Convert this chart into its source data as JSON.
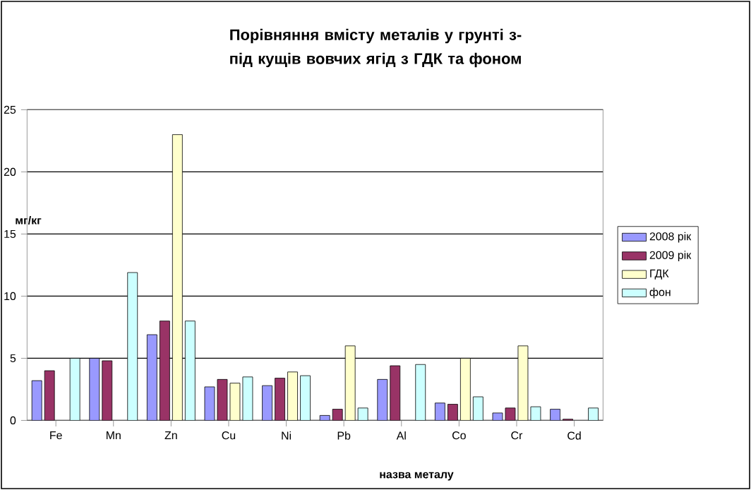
{
  "chart_data": {
    "type": "bar",
    "title": "Порівняння вмісту металів у грунті з-під кущів вовчих ягід з ГДК та фоном",
    "xlabel": "назва металу",
    "ylabel": "мг/кг",
    "categories": [
      "Fe",
      "Mn",
      "Zn",
      "Cu",
      "Ni",
      "Pb",
      "Al",
      "Co",
      "Cr",
      "Cd"
    ],
    "series": [
      {
        "name": "2008 рік",
        "color": "#9999ff",
        "values": [
          3.2,
          5.0,
          6.9,
          2.7,
          2.8,
          0.4,
          3.3,
          1.4,
          0.6,
          0.9
        ]
      },
      {
        "name": "2009 рік",
        "color": "#993366",
        "values": [
          4.0,
          4.8,
          8.0,
          3.3,
          3.4,
          0.9,
          4.4,
          1.3,
          1.0,
          0.1
        ]
      },
      {
        "name": "ГДК",
        "color": "#ffffcc",
        "values": [
          null,
          null,
          23.0,
          3.0,
          3.9,
          6.0,
          null,
          5.0,
          6.0,
          null
        ]
      },
      {
        "name": "фон",
        "color": "#ccffff",
        "values": [
          5.0,
          11.9,
          8.0,
          3.5,
          3.6,
          1.0,
          4.5,
          1.9,
          1.1,
          1.0
        ]
      }
    ],
    "ylim": [
      0,
      25
    ],
    "yticks": [
      0,
      5,
      10,
      15,
      20,
      25
    ],
    "grid": "y",
    "legend": "right"
  }
}
